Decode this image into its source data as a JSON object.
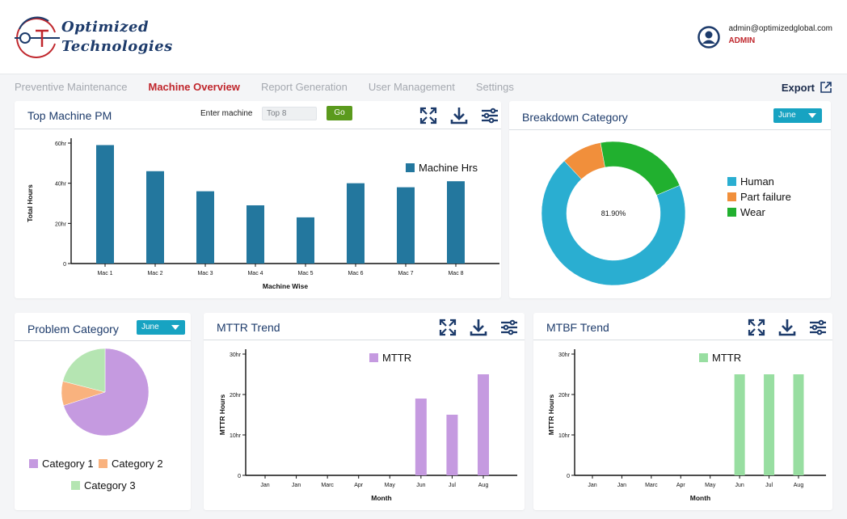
{
  "brand": {
    "line1": "Optimized",
    "line2": "Technologies",
    "logo_letters": "OT"
  },
  "user": {
    "email": "admin@optimizedglobal.com",
    "role": "ADMIN"
  },
  "nav": {
    "items": [
      {
        "label": "Preventive Maintenance",
        "active": false
      },
      {
        "label": "Machine Overview",
        "active": true
      },
      {
        "label": "Report Generation",
        "active": false
      },
      {
        "label": "User Management",
        "active": false
      },
      {
        "label": "Settings",
        "active": false
      }
    ],
    "export_label": "Export"
  },
  "top_machine": {
    "title": "Top Machine PM",
    "enter_label": "Enter machine",
    "input_value": "Top 8",
    "go_label": "Go"
  },
  "breakdown": {
    "title": "Breakdown Category",
    "dropdown": "June",
    "center_label": "81.90%"
  },
  "problem": {
    "title": "Problem Category",
    "dropdown": "June"
  },
  "mttr": {
    "title": "MTTR Trend"
  },
  "mtbf": {
    "title": "MTBF Trend"
  },
  "icons": [
    "expand-icon",
    "download-icon",
    "filter-settings-icon",
    "user-circle-icon",
    "external-link-icon"
  ],
  "colors": {
    "brand_red": "#c0272d",
    "navy": "#1d3b6b",
    "teal": "#17a3c2",
    "go_green": "#5b9a1d"
  },
  "chart_data": [
    {
      "id": "top-machine",
      "type": "bar",
      "categories": [
        "Mac 1",
        "Mac 2",
        "Mac 3",
        "Mac 4",
        "Mac 5",
        "Mac 6",
        "Mac 7",
        "Mac 8"
      ],
      "series": [
        {
          "name": "Machine Hrs",
          "values": [
            59,
            46,
            36,
            29,
            23,
            40,
            38,
            41
          ],
          "color": "#23779e"
        }
      ],
      "ylabel": "Total Hours",
      "xlabel": "Machine Wise",
      "ylim": [
        0,
        60
      ],
      "yticks": [
        "0",
        "20hr",
        "40hr",
        "60hr"
      ],
      "legend": "top-right"
    },
    {
      "id": "breakdown",
      "type": "pie",
      "donut": true,
      "categories": [
        "Human",
        "Part failure",
        "Wear"
      ],
      "values": [
        69.4,
        9.1,
        21.5
      ],
      "colors": [
        "#2aaed1",
        "#f18f3b",
        "#21b02f"
      ],
      "legend": "right"
    },
    {
      "id": "problem",
      "type": "pie",
      "categories": [
        "Category 1",
        "Category 2",
        "Category 3"
      ],
      "values": [
        70,
        9,
        21
      ],
      "colors": [
        "#c59ae0",
        "#f9b27e",
        "#b5e5b2"
      ],
      "legend": "bottom"
    },
    {
      "id": "mttr",
      "type": "bar",
      "categories": [
        "Jan",
        "Jan",
        "Marc",
        "Apr",
        "May",
        "Jun",
        "Jul",
        "Aug"
      ],
      "series": [
        {
          "name": "MTTR",
          "values": [
            0,
            0,
            0,
            0,
            0,
            19,
            15,
            25
          ],
          "color": "#c59ae0"
        }
      ],
      "ylabel": "MTTR Hours",
      "xlabel": "Month",
      "ylim": [
        0,
        30
      ],
      "yticks": [
        "0",
        "10hr",
        "20hr",
        "30hr"
      ],
      "legend": "top"
    },
    {
      "id": "mtbf",
      "type": "bar",
      "categories": [
        "Jan",
        "Jan",
        "Marc",
        "Apr",
        "May",
        "Jun",
        "Jul",
        "Aug"
      ],
      "series": [
        {
          "name": "MTTR",
          "values": [
            0,
            0,
            0,
            0,
            0,
            25,
            25,
            25
          ],
          "color": "#98dea1"
        }
      ],
      "ylabel": "MTTR Hours",
      "xlabel": "Month",
      "ylim": [
        0,
        30
      ],
      "yticks": [
        "0",
        "10hr",
        "20hr",
        "30hr"
      ],
      "legend": "top"
    }
  ]
}
